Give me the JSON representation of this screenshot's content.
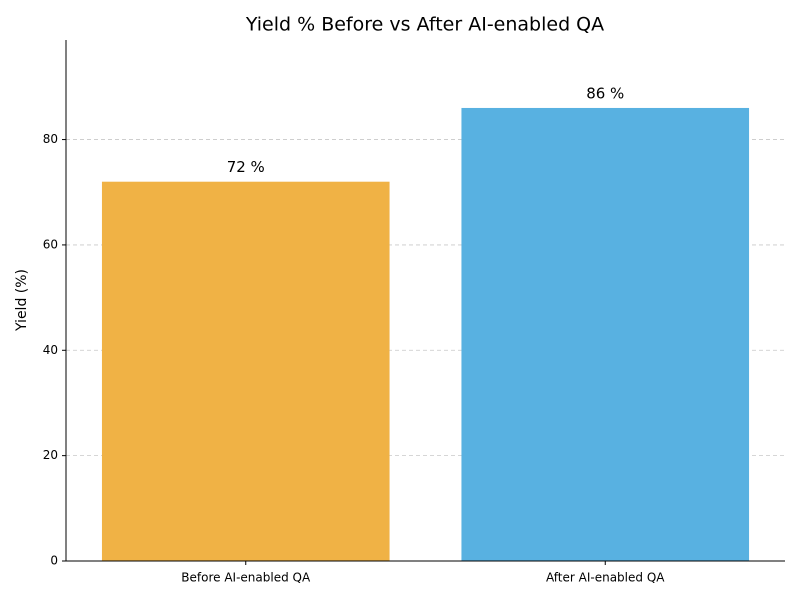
{
  "chart_data": {
    "type": "bar",
    "title": "Yield % Before vs After AI-enabled QA",
    "y_label": "Yield (%)",
    "categories": [
      "Before AI-enabled QA",
      "After AI-enabled QA"
    ],
    "values": [
      72,
      86
    ],
    "value_labels": [
      "72 %",
      "86 %"
    ],
    "colors": [
      "#f0b245",
      "#58b1e1"
    ],
    "ylim": [
      0,
      98.9
    ],
    "yticks": [
      0,
      20,
      40,
      60,
      80
    ],
    "grid": true
  }
}
